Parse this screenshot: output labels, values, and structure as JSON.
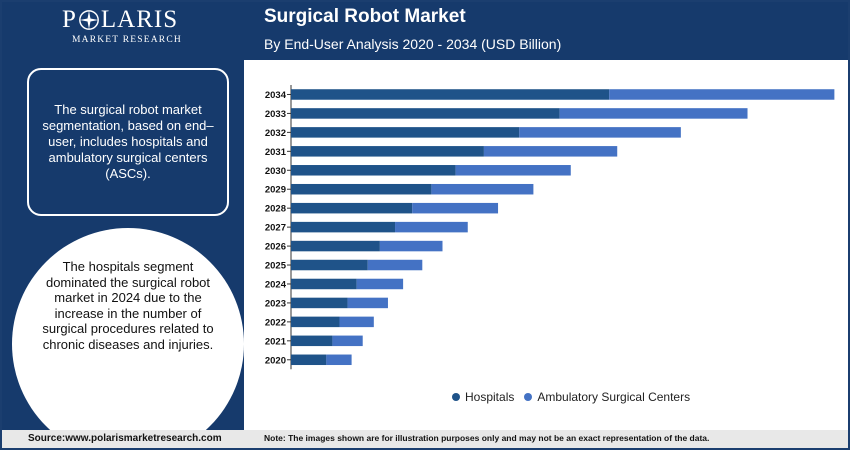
{
  "brand": {
    "name": "POLARIS",
    "tagline": "MARKET RESEARCH"
  },
  "header": {
    "title": "Surgical Robot Market",
    "subtitle": "By End-User Analysis 2020 - 2034 (USD Billion)"
  },
  "sidebar": {
    "box_text": "The surgical robot market segmentation, based on end–user, includes hospitals and ambulatory surgical centers (ASCs).",
    "circle_text": "The hospitals segment dominated the surgical robot market in 2024 due to the increase in the number of surgical procedures related to chronic diseases and injuries."
  },
  "footer": {
    "source": "Source:www.polarismarketresearch.com",
    "note": "Note: The images shown are for illustration purposes only and may not be an exact representation of the data."
  },
  "colors": {
    "navy": "#163a6c",
    "hospitals": "#1f5389",
    "ambulatory": "#4472c4",
    "axis": "#333333"
  },
  "chart_data": {
    "type": "bar",
    "orientation": "horizontal",
    "stacked": true,
    "categories": [
      "2034",
      "2033",
      "2032",
      "2031",
      "2030",
      "2029",
      "2028",
      "2027",
      "2026",
      "2025",
      "2024",
      "2023",
      "2022",
      "2021",
      "2020"
    ],
    "series": [
      {
        "name": "Hospitals",
        "values": [
          31.5,
          26.6,
          22.6,
          19.1,
          16.3,
          13.9,
          12.0,
          10.3,
          8.8,
          7.6,
          6.5,
          5.6,
          4.8,
          4.1,
          3.5
        ]
      },
      {
        "name": "Ambulatory Surgical Centers",
        "values": [
          22.3,
          18.6,
          16.0,
          13.2,
          11.4,
          10.1,
          8.5,
          7.2,
          6.2,
          5.4,
          4.6,
          4.0,
          3.4,
          3.0,
          2.5
        ]
      }
    ],
    "xlim": [
      0,
      55
    ],
    "grid": false,
    "legend": "bottom"
  }
}
